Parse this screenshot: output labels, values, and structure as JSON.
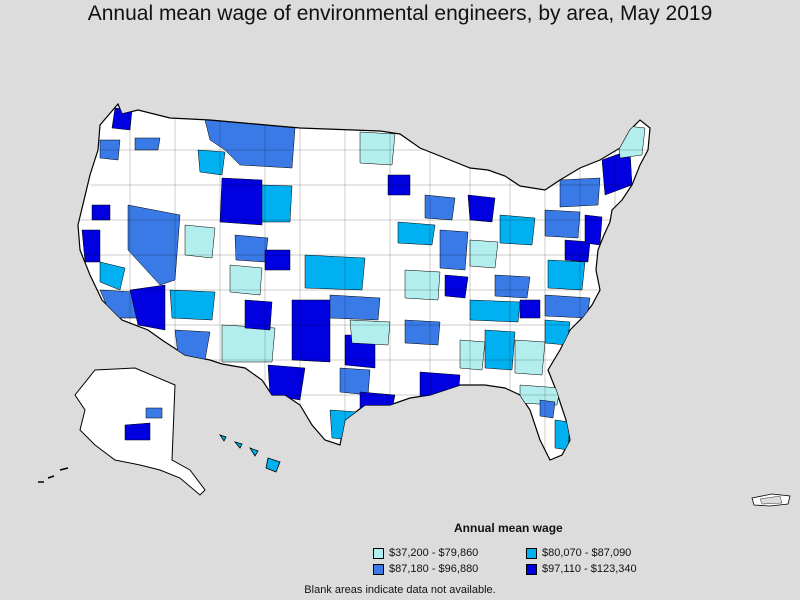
{
  "title": "Annual mean wage of environmental engineers, by area, May 2019",
  "legend": {
    "title": "Annual mean wage",
    "items": [
      {
        "label": "$37,200 - $79,860",
        "color": "#b3eeee"
      },
      {
        "label": "$80,070 - $87,090",
        "color": "#00b0f0"
      },
      {
        "label": "$87,180 - $96,880",
        "color": "#3a7ae6"
      },
      {
        "label": "$97,110 - $123,340",
        "color": "#0000e0"
      }
    ]
  },
  "footnote": "Blank areas indicate data not available.",
  "colors": {
    "background": "#dcdcdc",
    "land_no_data": "#ffffff",
    "border": "#000000"
  }
}
